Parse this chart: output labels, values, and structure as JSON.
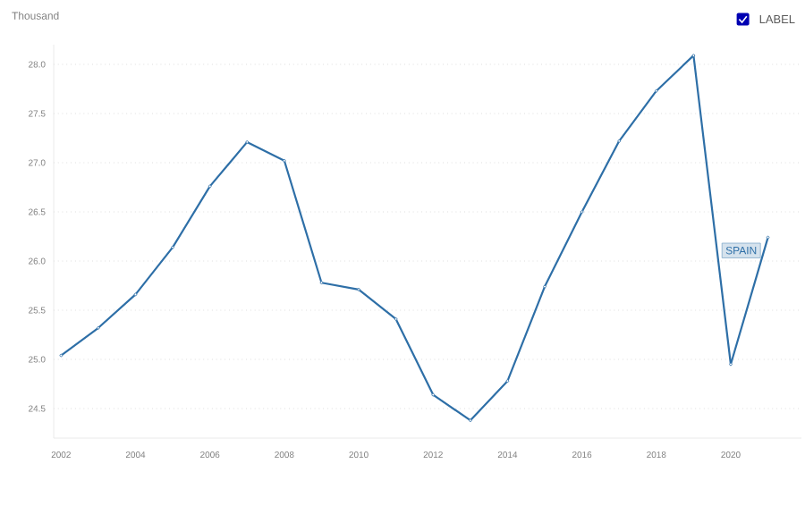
{
  "chart_data": {
    "type": "line",
    "ylabel": "Thousand",
    "annotations": [
      "LABEL"
    ],
    "x": [
      2002,
      2003,
      2004,
      2005,
      2006,
      2007,
      2008,
      2009,
      2010,
      2011,
      2012,
      2013,
      2014,
      2015,
      2016,
      2017,
      2018,
      2019,
      2020,
      2021
    ],
    "series": [
      {
        "name": "SPAIN",
        "color": "#2e6fa7",
        "values": [
          25.04,
          25.32,
          25.66,
          26.14,
          26.76,
          27.21,
          27.02,
          25.78,
          25.71,
          25.41,
          24.64,
          24.38,
          24.78,
          25.74,
          26.5,
          27.22,
          27.73,
          28.09,
          24.95,
          26.24
        ]
      }
    ],
    "xlim": [
      2001.8,
      2021.9
    ],
    "ylim": [
      24.2,
      28.2
    ],
    "xticks": [
      2002,
      2004,
      2006,
      2008,
      2010,
      2012,
      2014,
      2016,
      2018,
      2020
    ],
    "yticks": [
      {
        "value": 24.5,
        "label": "24.5"
      },
      {
        "value": 25,
        "label": "25.0"
      },
      {
        "value": 25.5,
        "label": "25.5"
      },
      {
        "value": 26,
        "label": "26.0"
      },
      {
        "value": 26.5,
        "label": "26.5"
      },
      {
        "value": 27,
        "label": "27.0"
      },
      {
        "value": 27.5,
        "label": "27.5"
      },
      {
        "value": 28,
        "label": "28.0"
      }
    ],
    "grid": "y",
    "marker": "circle",
    "line_style": "solid",
    "legend": false
  }
}
